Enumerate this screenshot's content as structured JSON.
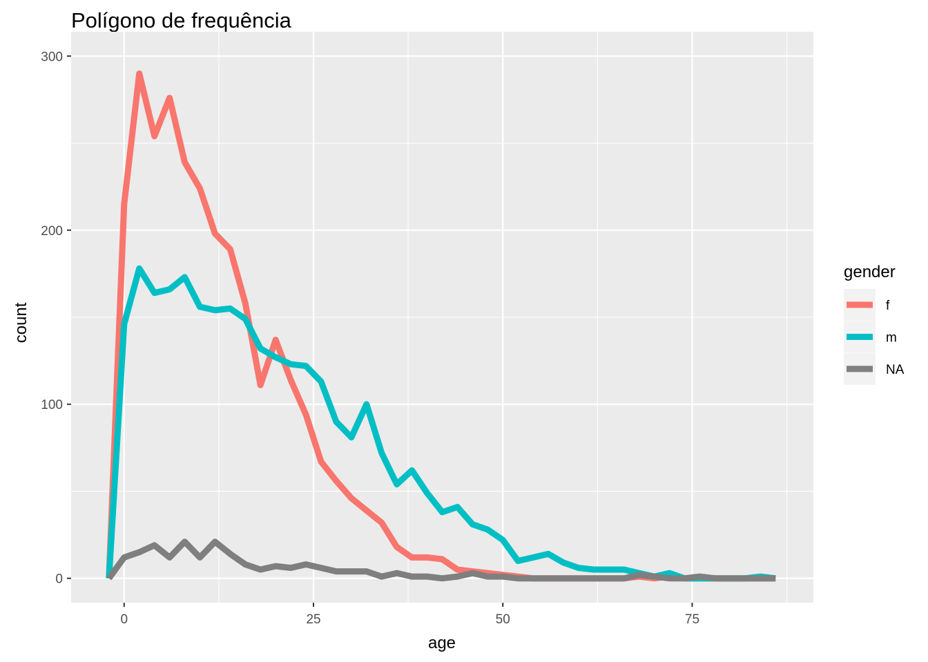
{
  "chart_data": {
    "type": "line",
    "title": "Polígono de frequência",
    "xlabel": "age",
    "ylabel": "count",
    "xlim": [
      -7,
      91
    ],
    "ylim": [
      -14,
      314
    ],
    "x_ticks": [
      0,
      25,
      50,
      75
    ],
    "x_tick_labels": [
      "0",
      "25",
      "50",
      "75"
    ],
    "y_ticks": [
      0,
      100,
      200,
      300
    ],
    "y_tick_labels": [
      "0",
      "100",
      "200",
      "300"
    ],
    "grid": true,
    "background": "#ebebeb",
    "legend": {
      "title": "gender",
      "position": "right",
      "entries": [
        "f",
        "m",
        "NA"
      ]
    },
    "x": [
      -2,
      0,
      2,
      4,
      6,
      8,
      10,
      12,
      14,
      16,
      18,
      20,
      22,
      24,
      26,
      28,
      30,
      32,
      34,
      36,
      38,
      40,
      42,
      44,
      46,
      48,
      50,
      52,
      54,
      56,
      58,
      60,
      62,
      64,
      66,
      68,
      70,
      72,
      74,
      76,
      78,
      80,
      82,
      84,
      86
    ],
    "series": [
      {
        "name": "f",
        "color": "#f8766d",
        "values": [
          0,
          215,
          290,
          254,
          276,
          239,
          224,
          198,
          189,
          158,
          111,
          137,
          114,
          94,
          67,
          56,
          46,
          39,
          32,
          18,
          12,
          12,
          11,
          5,
          4,
          3,
          2,
          1,
          0,
          0,
          0,
          0,
          0,
          0,
          0,
          1,
          0,
          1,
          0,
          0,
          0,
          0,
          0,
          0,
          0
        ]
      },
      {
        "name": "m",
        "color": "#00bfc4",
        "values": [
          0,
          146,
          178,
          164,
          166,
          173,
          156,
          154,
          155,
          149,
          132,
          127,
          123,
          122,
          113,
          90,
          81,
          100,
          72,
          54,
          62,
          49,
          38,
          41,
          31,
          28,
          22,
          10,
          12,
          14,
          9,
          6,
          5,
          5,
          5,
          3,
          1,
          3,
          0,
          0,
          0,
          0,
          0,
          1,
          0
        ]
      },
      {
        "name": "NA",
        "color": "#7f7f7f",
        "values": [
          0,
          12,
          15,
          19,
          12,
          21,
          12,
          21,
          14,
          8,
          5,
          7,
          6,
          8,
          6,
          4,
          4,
          4,
          1,
          3,
          1,
          1,
          0,
          1,
          3,
          1,
          1,
          0,
          0,
          0,
          0,
          0,
          0,
          0,
          0,
          2,
          1,
          0,
          0,
          1,
          0,
          0,
          0,
          0,
          0
        ]
      }
    ]
  }
}
